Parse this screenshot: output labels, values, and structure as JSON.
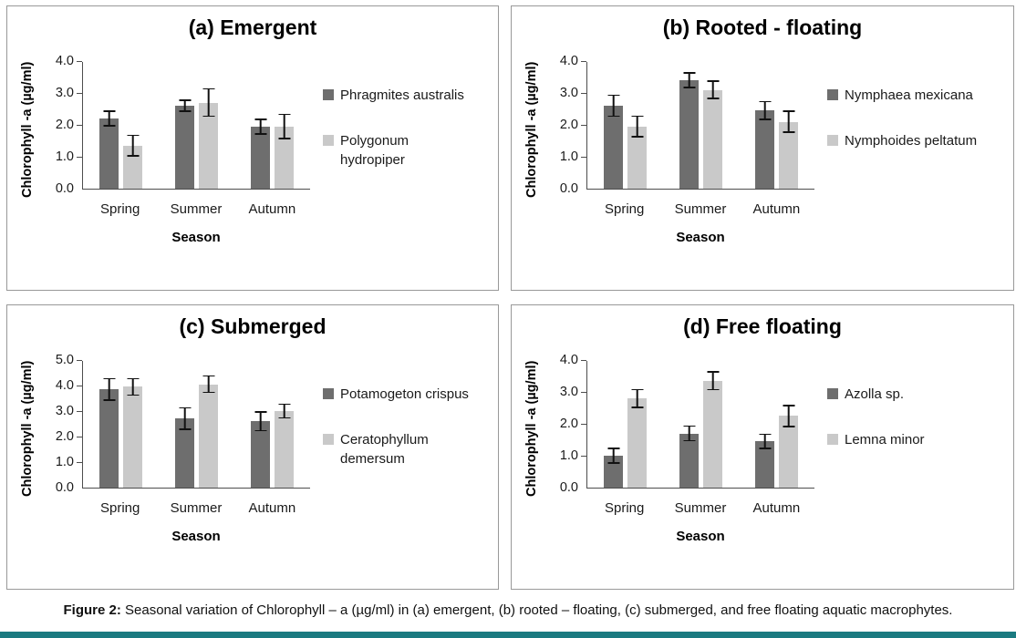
{
  "page": {
    "accent_color": "#1a7a80"
  },
  "caption": {
    "label": "Figure 2:",
    "text": " Seasonal variation of Chlorophyll – a (µg/ml) in (a) emergent, (b) rooted – floating, (c) submerged, and free floating aquatic macrophytes."
  },
  "chart_data": [
    {
      "id": "a",
      "type": "bar",
      "title": "(a) Emergent",
      "xlabel": "Season",
      "ylabel": "Chlorophyll -a (µg/ml)",
      "ylim": [
        0,
        4.0
      ],
      "ytick_step": 1.0,
      "grid": false,
      "legend_position": "right",
      "categories": [
        "Spring",
        "Summer",
        "Autumn"
      ],
      "series": [
        {
          "name": "Phragmites australis",
          "color": "#6e6e6e",
          "values": [
            2.2,
            2.6,
            1.95
          ],
          "errors": [
            0.25,
            0.2,
            0.25
          ]
        },
        {
          "name": "Polygonum\nhydropiper",
          "color": "#c9c9c9",
          "values": [
            1.35,
            2.7,
            1.95
          ],
          "errors": [
            0.35,
            0.45,
            0.4
          ]
        }
      ]
    },
    {
      "id": "b",
      "type": "bar",
      "title": "(b) Rooted - floating",
      "xlabel": "Season",
      "ylabel": "Chlorophyll -a (µg/ml)",
      "ylim": [
        0,
        4.0
      ],
      "ytick_step": 1.0,
      "grid": false,
      "legend_position": "right",
      "categories": [
        "Spring",
        "Summer",
        "Autumn"
      ],
      "series": [
        {
          "name": "Nymphaea mexicana",
          "color": "#6e6e6e",
          "values": [
            2.6,
            3.4,
            2.45
          ],
          "errors": [
            0.35,
            0.25,
            0.3
          ]
        },
        {
          "name": "Nymphoides peltatum",
          "color": "#c9c9c9",
          "values": [
            1.95,
            3.1,
            2.1
          ],
          "errors": [
            0.35,
            0.3,
            0.35
          ]
        }
      ]
    },
    {
      "id": "c",
      "type": "bar",
      "title": "(c) Submerged",
      "xlabel": "Season",
      "ylabel": "Chlorophyll -a (µg/ml)",
      "ylim": [
        0,
        5.0
      ],
      "ytick_step": 1.0,
      "grid": false,
      "legend_position": "right",
      "categories": [
        "Spring",
        "Summer",
        "Autumn"
      ],
      "series": [
        {
          "name": "Potamogeton crispus",
          "color": "#6e6e6e",
          "values": [
            3.85,
            2.7,
            2.6
          ],
          "errors": [
            0.45,
            0.45,
            0.4
          ]
        },
        {
          "name": "Ceratophyllum\ndemersum",
          "color": "#c9c9c9",
          "values": [
            3.95,
            4.05,
            3.0
          ],
          "errors": [
            0.35,
            0.35,
            0.3
          ]
        }
      ]
    },
    {
      "id": "d",
      "type": "bar",
      "title": "(d) Free floating",
      "xlabel": "Season",
      "ylabel": "Chlorophyll -a (µg/ml)",
      "ylim": [
        0,
        4.0
      ],
      "ytick_step": 1.0,
      "grid": false,
      "legend_position": "right",
      "categories": [
        "Spring",
        "Summer",
        "Autumn"
      ],
      "series": [
        {
          "name": "Azolla sp.",
          "color": "#6e6e6e",
          "values": [
            1.0,
            1.7,
            1.45
          ],
          "errors": [
            0.25,
            0.25,
            0.25
          ]
        },
        {
          "name": "Lemna minor",
          "color": "#c9c9c9",
          "values": [
            2.8,
            3.35,
            2.25
          ],
          "errors": [
            0.3,
            0.3,
            0.35
          ]
        }
      ]
    }
  ]
}
